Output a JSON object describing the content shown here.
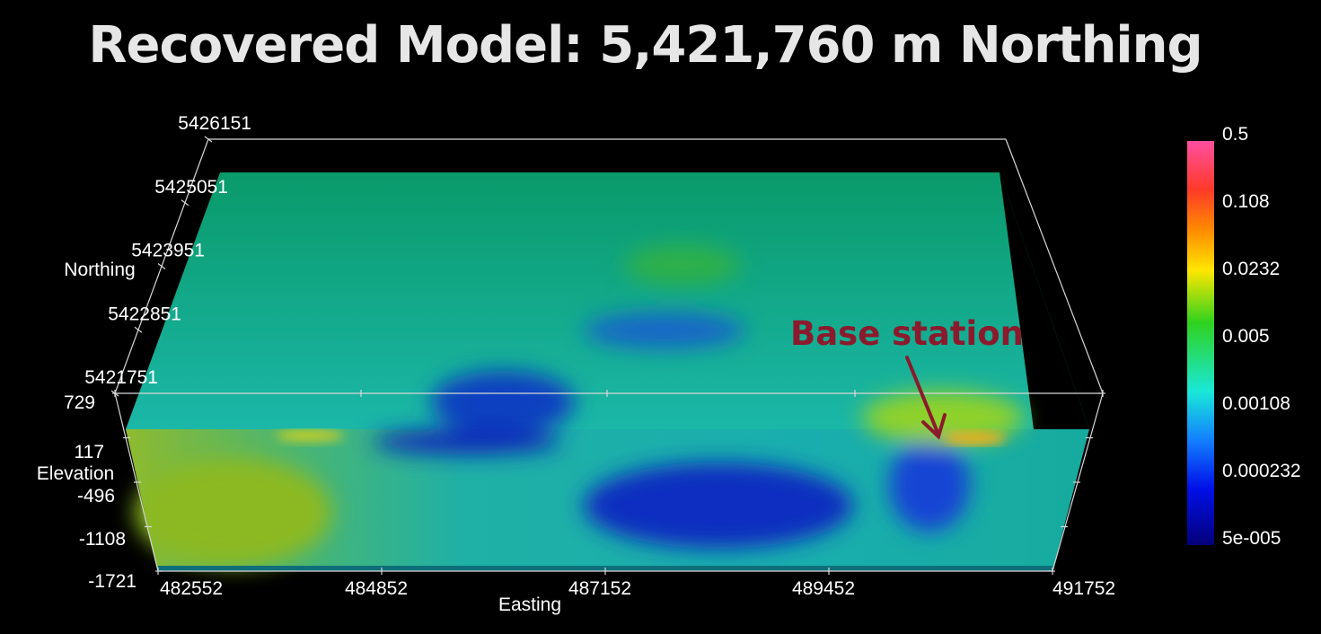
{
  "title": "Recovered Model: 5,421,760 m Northing",
  "chart_data": {
    "type": "heatmap",
    "title": "Recovered Model: 5,421,760 m Northing",
    "xlabel": "Easting",
    "ylabel": "Elevation",
    "zlabel": "Northing",
    "easting_ticks": [
      "482552",
      "484852",
      "487152",
      "489452",
      "491752"
    ],
    "northing_ticks": [
      "5426151",
      "5425051",
      "5423951",
      "5422851",
      "5421751"
    ],
    "elevation_ticks": [
      "729",
      "117",
      "-496",
      "-1108",
      "-1721"
    ],
    "xlim": [
      482552,
      491752
    ],
    "ylim": [
      -1721,
      729
    ],
    "northing_range": [
      5421751,
      5426151
    ],
    "colorbar": {
      "scale": "log",
      "ticks": [
        "0.5",
        "0.108",
        "0.0232",
        "0.005",
        "0.00108",
        "0.000232",
        "5e-005"
      ],
      "range": [
        5e-05,
        0.5
      ]
    },
    "annotations": [
      {
        "text": "Base station",
        "easting": 490500,
        "elevation": 729
      }
    ]
  }
}
